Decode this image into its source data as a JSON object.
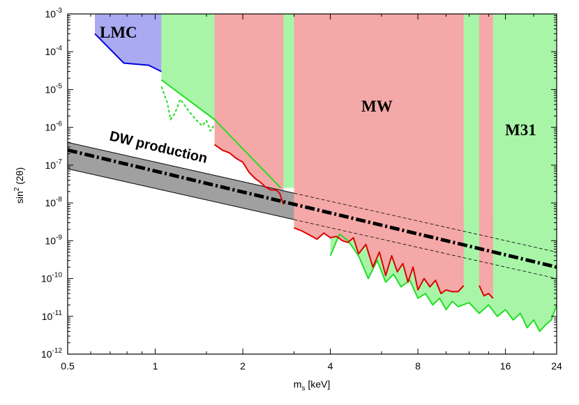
{
  "chart_data": {
    "type": "area",
    "xlabel": "m_s [keV]",
    "ylabel": "sin^2 (2θ)",
    "x_scale": "log",
    "y_scale": "log",
    "xlim": [
      0.5,
      24
    ],
    "ylim": [
      1e-12,
      0.001
    ],
    "x_ticks": [
      0.5,
      1,
      2,
      4,
      8,
      16,
      24
    ],
    "x_tick_labels": [
      "0.5",
      "1",
      "2",
      "4",
      "8",
      "16",
      "24"
    ],
    "y_ticks": [
      {
        "value": 1e-12,
        "base": "10",
        "exp": "-12"
      },
      {
        "value": 1e-11,
        "base": "10",
        "exp": "-11"
      },
      {
        "value": 1e-10,
        "base": "10",
        "exp": "-10"
      },
      {
        "value": 1e-09,
        "base": "10",
        "exp": "-9"
      },
      {
        "value": 1e-08,
        "base": "10",
        "exp": "-8"
      },
      {
        "value": 1e-07,
        "base": "10",
        "exp": "-7"
      },
      {
        "value": 1e-06,
        "base": "10",
        "exp": "-6"
      },
      {
        "value": 1e-05,
        "base": "10",
        "exp": "-5"
      },
      {
        "value": 0.0001,
        "base": "10",
        "exp": "-4"
      },
      {
        "value": 0.001,
        "base": "10",
        "exp": "-3"
      }
    ],
    "colors": {
      "lmc_fill": "#aaaaf2",
      "lmc_line": "#0000dd",
      "m31_fill": "#a8f5a8",
      "m31_line": "#22dd22",
      "mw_fill": "#f5a8a8",
      "mw_line": "#dd0000",
      "dw_band": "#a0a0a0"
    },
    "labels": {
      "lmc": "LMC",
      "mw": "MW",
      "m31": "M31",
      "dw": "DW production"
    },
    "series": [
      {
        "region": "LMC",
        "role": "excluded region boundary",
        "x": [
          0.62,
          0.78,
          0.95,
          1.05
        ],
        "y": [
          0.0003,
          5e-05,
          4.4e-05,
          3e-05
        ]
      },
      {
        "region": "M31",
        "role": "excluded region boundary",
        "x": [
          1.05,
          1.6,
          2.7
        ],
        "y": [
          1.8e-05,
          1.6e-06,
          2.5e-08
        ]
      },
      {
        "region": "M31",
        "role": "alternative bound (dashed)",
        "x": [
          1.05,
          1.1,
          1.13,
          1.17,
          1.22,
          1.3,
          1.38,
          1.45,
          1.5,
          1.55,
          1.6
        ],
        "y": [
          1.2e-05,
          4.5e-06,
          1.6e-06,
          2.4e-06,
          5.5e-06,
          2.8e-06,
          1.6e-06,
          1.1e-06,
          1.5e-06,
          8e-07,
          1.2e-06
        ]
      },
      {
        "region": "MW",
        "role": "excluded region boundary",
        "x": [
          1.6,
          1.7,
          1.8,
          1.9,
          2.0,
          2.1,
          2.2,
          2.3,
          2.4,
          2.5,
          2.6,
          2.68,
          2.76
        ],
        "y": [
          3.5e-07,
          2.5e-07,
          2.1e-07,
          1.5e-07,
          1.2e-07,
          6.5e-08,
          4.5e-08,
          3.5e-08,
          2.6e-08,
          2.2e-08,
          2.2e-08,
          1.8e-08,
          9e-09
        ]
      },
      {
        "region": "MW",
        "role": "excluded region boundary",
        "x": [
          3.0,
          3.2,
          3.4,
          3.6,
          3.8,
          4.0,
          4.2,
          4.4,
          4.6,
          4.8,
          5.0,
          5.3,
          5.6,
          5.9,
          6.2,
          6.5,
          6.8,
          7.1,
          7.4,
          7.7,
          8.0,
          8.4,
          8.8,
          9.2,
          9.6,
          10.0,
          10.5,
          11.0,
          11.5
        ],
        "y": [
          2.2e-09,
          1.8e-09,
          1.4e-09,
          1.1e-09,
          1.6e-09,
          1.2e-09,
          1.3e-09,
          1e-09,
          9e-10,
          1.2e-09,
          4.5e-10,
          8e-10,
          2e-10,
          5e-10,
          1.2e-10,
          4e-10,
          1.5e-10,
          2.5e-10,
          8e-11,
          2e-10,
          5e-11,
          1e-10,
          6e-11,
          9e-11,
          4e-11,
          5e-11,
          4.5e-11,
          4.5e-11,
          6.5e-11
        ]
      },
      {
        "region": "MW",
        "role": "excluded region boundary",
        "x": [
          13.0,
          13.5,
          14.0,
          14.5
        ],
        "y": [
          6.5e-11,
          3.5e-11,
          4e-11,
          3e-11
        ]
      },
      {
        "region": "M31",
        "role": "excluded region boundary",
        "x": [
          4.0,
          4.3,
          4.6,
          5.0,
          5.4,
          5.8,
          6.2,
          6.6,
          7.0,
          7.5,
          8.0,
          8.5,
          9.0,
          9.5,
          10.0,
          10.5,
          11.0,
          12.0,
          13.0,
          14.0,
          15.0,
          16.0,
          17.0,
          18.0,
          19.0,
          20.0,
          21.0,
          22.0,
          23.0,
          24.0
        ],
        "y": [
          4e-10,
          1.5e-09,
          1e-09,
          4e-10,
          1e-10,
          3e-10,
          8e-11,
          1.3e-10,
          6e-11,
          9e-11,
          3e-11,
          4e-11,
          2e-11,
          3e-11,
          1.5e-11,
          2.5e-11,
          1.8e-11,
          2.3e-11,
          1.2e-11,
          2e-11,
          1e-11,
          1.5e-11,
          8e-12,
          1.2e-11,
          5e-12,
          8e-12,
          4e-12,
          6e-12,
          8e-12,
          2e-11
        ]
      },
      {
        "region": "DW production",
        "role": "central prediction (dash-dot)",
        "x": [
          0.5,
          24
        ],
        "y": [
          2.5e-07,
          2e-10
        ]
      },
      {
        "region": "DW production",
        "role": "band upper edge",
        "x": [
          0.5,
          24
        ],
        "y": [
          4e-07,
          5e-10
        ]
      },
      {
        "region": "DW production",
        "role": "band lower edge",
        "x": [
          0.5,
          24
        ],
        "y": [
          8e-08,
          1e-10
        ]
      }
    ]
  }
}
